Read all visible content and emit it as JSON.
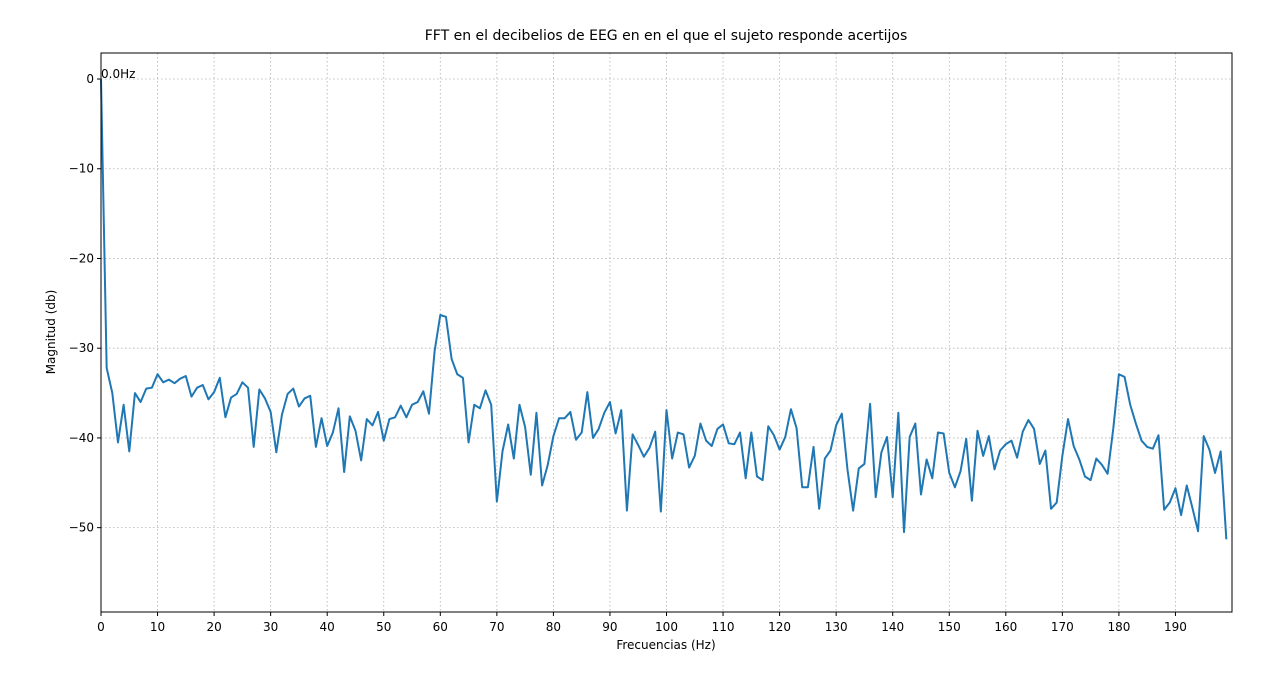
{
  "chart_data": {
    "type": "line",
    "title": "FFT en el decibelios de EEG en en el que el sujeto responde acertijos",
    "xlabel": "Frecuencias (Hz)",
    "ylabel": "Magnitud (db)",
    "annotation": {
      "text": "0.0Hz",
      "x": 0,
      "y": 0
    },
    "x": [
      0,
      1,
      2,
      3,
      4,
      5,
      6,
      7,
      8,
      9,
      10,
      11,
      12,
      13,
      14,
      15,
      16,
      17,
      18,
      19,
      20,
      21,
      22,
      23,
      24,
      25,
      26,
      27,
      28,
      29,
      30,
      31,
      32,
      33,
      34,
      35,
      36,
      37,
      38,
      39,
      40,
      41,
      42,
      43,
      44,
      45,
      46,
      47,
      48,
      49,
      50,
      51,
      52,
      53,
      54,
      55,
      56,
      57,
      58,
      59,
      60,
      61,
      62,
      63,
      64,
      65,
      66,
      67,
      68,
      69,
      70,
      71,
      72,
      73,
      74,
      75,
      76,
      77,
      78,
      79,
      80,
      81,
      82,
      83,
      84,
      85,
      86,
      87,
      88,
      89,
      90,
      91,
      92,
      93,
      94,
      95,
      96,
      97,
      98,
      99,
      100,
      101,
      102,
      103,
      104,
      105,
      106,
      107,
      108,
      109,
      110,
      111,
      112,
      113,
      114,
      115,
      116,
      117,
      118,
      119,
      120,
      121,
      122,
      123,
      124,
      125,
      126,
      127,
      128,
      129,
      130,
      131,
      132,
      133,
      134,
      135,
      136,
      137,
      138,
      139,
      140,
      141,
      142,
      143,
      144,
      145,
      146,
      147,
      148,
      149,
      150,
      151,
      152,
      153,
      154,
      155,
      156,
      157,
      158,
      159,
      160,
      161,
      162,
      163,
      164,
      165,
      166,
      167,
      168,
      169,
      170,
      171,
      172,
      173,
      174,
      175,
      176,
      177,
      178,
      179,
      180,
      181,
      182,
      183,
      184,
      185,
      186,
      187,
      188,
      189,
      190,
      191,
      192,
      193,
      194,
      195,
      196,
      197,
      198,
      199
    ],
    "series": [
      {
        "color": "#1f77b4",
        "values": [
          0,
          -32.2,
          -35,
          -40.5,
          -36.3,
          -41.5,
          -35,
          -36,
          -34.5,
          -34.4,
          -32.9,
          -33.8,
          -33.5,
          -33.9,
          -33.4,
          -33.1,
          -35.4,
          -34.4,
          -34.1,
          -35.7,
          -34.9,
          -33.3,
          -37.7,
          -35.5,
          -35.1,
          -33.8,
          -34.4,
          -41,
          -34.6,
          -35.6,
          -37.1,
          -41.6,
          -37.4,
          -35.1,
          -34.5,
          -36.5,
          -35.6,
          -35.3,
          -41,
          -37.8,
          -40.9,
          -39.4,
          -36.7,
          -43.8,
          -37.6,
          -39.2,
          -42.5,
          -37.9,
          -38.6,
          -37.1,
          -40.3,
          -37.9,
          -37.7,
          -36.4,
          -37.7,
          -36.3,
          -36,
          -34.8,
          -37.3,
          -30.3,
          -26.3,
          -26.5,
          -31.2,
          -32.9,
          -33.3,
          -40.5,
          -36.3,
          -36.7,
          -34.7,
          -36.3,
          -47.1,
          -41.5,
          -38.5,
          -42.3,
          -36.3,
          -38.8,
          -44.1,
          -37.2,
          -45.3,
          -43,
          -39.8,
          -37.8,
          -37.8,
          -37.1,
          -40.2,
          -39.4,
          -34.9,
          -40,
          -39,
          -37.2,
          -36,
          -39.5,
          -36.9,
          -48.1,
          -39.6,
          -40.8,
          -42.1,
          -41.1,
          -39.3,
          -48.2,
          -36.9,
          -42.3,
          -39.4,
          -39.6,
          -43.3,
          -42,
          -38.4,
          -40.3,
          -40.9,
          -39,
          -38.5,
          -40.6,
          -40.7,
          -39.4,
          -44.5,
          -39.4,
          -44.3,
          -44.7,
          -38.7,
          -39.7,
          -41.3,
          -39.9,
          -36.8,
          -38.9,
          -45.5,
          -45.5,
          -41,
          -47.9,
          -42.3,
          -41.4,
          -38.6,
          -37.3,
          -43.5,
          -48.1,
          -43.4,
          -42.9,
          -36.2,
          -46.6,
          -41.6,
          -39.9,
          -46.6,
          -37.2,
          -50.5,
          -39.9,
          -38.4,
          -46.3,
          -42.4,
          -44.5,
          -39.4,
          -39.5,
          -43.9,
          -45.5,
          -43.7,
          -40.1,
          -47,
          -39.2,
          -42,
          -39.8,
          -43.5,
          -41.4,
          -40.7,
          -40.3,
          -42.2,
          -39.3,
          -38,
          -39,
          -42.9,
          -41.4,
          -47.9,
          -47.2,
          -42,
          -37.9,
          -40.9,
          -42.4,
          -44.3,
          -44.7,
          -42.3,
          -43,
          -44,
          -39,
          -32.9,
          -33.2,
          -36.3,
          -38.4,
          -40.3,
          -41,
          -41.2,
          -39.7,
          -48,
          -47.2,
          -45.6,
          -48.6,
          -45.3,
          -47.8,
          -50.4,
          -39.8,
          -41.3,
          -43.9,
          -41.5,
          -51.3
        ]
      }
    ],
    "xlim": [
      0,
      200
    ],
    "ylim": [
      -59.4,
      2.9
    ],
    "xticks": [
      0,
      10,
      20,
      30,
      40,
      50,
      60,
      70,
      80,
      90,
      100,
      110,
      120,
      130,
      140,
      150,
      160,
      170,
      180,
      190
    ],
    "yticks": [
      0,
      {
        "value": -10,
        "label": "−10"
      },
      {
        "value": -20,
        "label": "−20"
      },
      {
        "value": -30,
        "label": "−30"
      },
      {
        "value": -40,
        "label": "−40"
      },
      {
        "value": -50,
        "label": "−50"
      }
    ],
    "grid": true
  }
}
